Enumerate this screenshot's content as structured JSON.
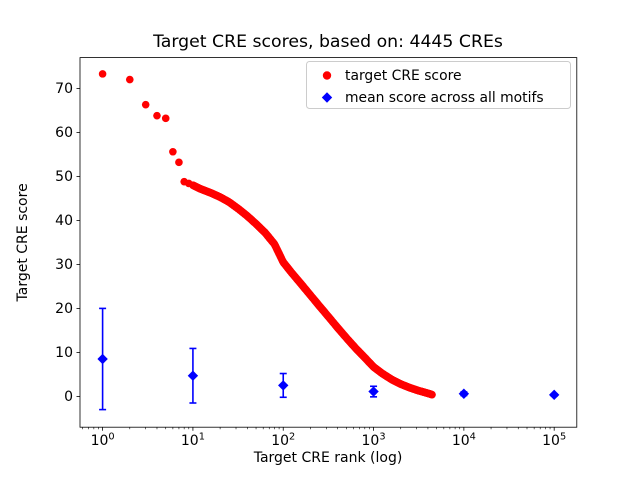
{
  "chart_data": {
    "type": "scatter",
    "title": "Target CRE scores, based on: 4445 CREs",
    "xlabel": "Target CRE rank (log)",
    "ylabel": "Target CRE score",
    "x_scale": "log",
    "xlim": [
      0.562,
      178000
    ],
    "ylim": [
      -7,
      77
    ],
    "x_ticks": [
      1,
      10,
      100,
      1000,
      10000,
      100000
    ],
    "y_ticks": [
      0,
      10,
      20,
      30,
      40,
      50,
      60,
      70
    ],
    "grid": false,
    "legend": {
      "position": "upper right",
      "entries": [
        {
          "label": "target CRE score",
          "marker": "circle",
          "color": "#ff0000"
        },
        {
          "label": "mean score across all motifs",
          "marker": "diamond",
          "color": "#0000ff"
        }
      ]
    },
    "series": [
      {
        "name": "target CRE score",
        "type": "scatter",
        "marker": "circle",
        "color": "#ff0000",
        "n_points": 4445,
        "anchor_points": [
          [
            1,
            73.3
          ],
          [
            2,
            72.0
          ],
          [
            3,
            66.3
          ],
          [
            4,
            63.8
          ],
          [
            5,
            63.2
          ],
          [
            6,
            55.6
          ],
          [
            7,
            53.2
          ],
          [
            8,
            48.8
          ],
          [
            9,
            48.4
          ],
          [
            10,
            48.0
          ],
          [
            12,
            47.2
          ],
          [
            16,
            46.2
          ],
          [
            20,
            45.3
          ],
          [
            25,
            44.2
          ],
          [
            32,
            42.6
          ],
          [
            40,
            41.0
          ],
          [
            50,
            39.2
          ],
          [
            63,
            37.2
          ],
          [
            80,
            34.6
          ],
          [
            100,
            30.5
          ],
          [
            125,
            28.0
          ],
          [
            160,
            25.4
          ],
          [
            200,
            23.0
          ],
          [
            250,
            20.6
          ],
          [
            320,
            18.0
          ],
          [
            400,
            15.6
          ],
          [
            500,
            13.3
          ],
          [
            630,
            11.0
          ],
          [
            800,
            8.8
          ],
          [
            1000,
            6.7
          ],
          [
            1250,
            5.2
          ],
          [
            1600,
            3.8
          ],
          [
            2000,
            2.8
          ],
          [
            2500,
            2.0
          ],
          [
            3150,
            1.3
          ],
          [
            4000,
            0.7
          ],
          [
            4445,
            0.4
          ]
        ]
      },
      {
        "name": "mean score across all motifs",
        "type": "errorbar",
        "marker": "diamond",
        "color": "#0000ff",
        "x": [
          1,
          10,
          100,
          1000,
          10000,
          100000
        ],
        "y": [
          8.5,
          4.7,
          2.5,
          1.1,
          0.6,
          0.35
        ],
        "yerr": [
          11.5,
          6.2,
          2.7,
          1.2,
          0.4,
          0.25
        ]
      }
    ]
  },
  "colors": {
    "background": "#ffffff",
    "axes": "#000000",
    "text": "#000000",
    "legend_border": "#cccccc",
    "red_series": "#ff0000",
    "blue_series": "#0000ff"
  }
}
